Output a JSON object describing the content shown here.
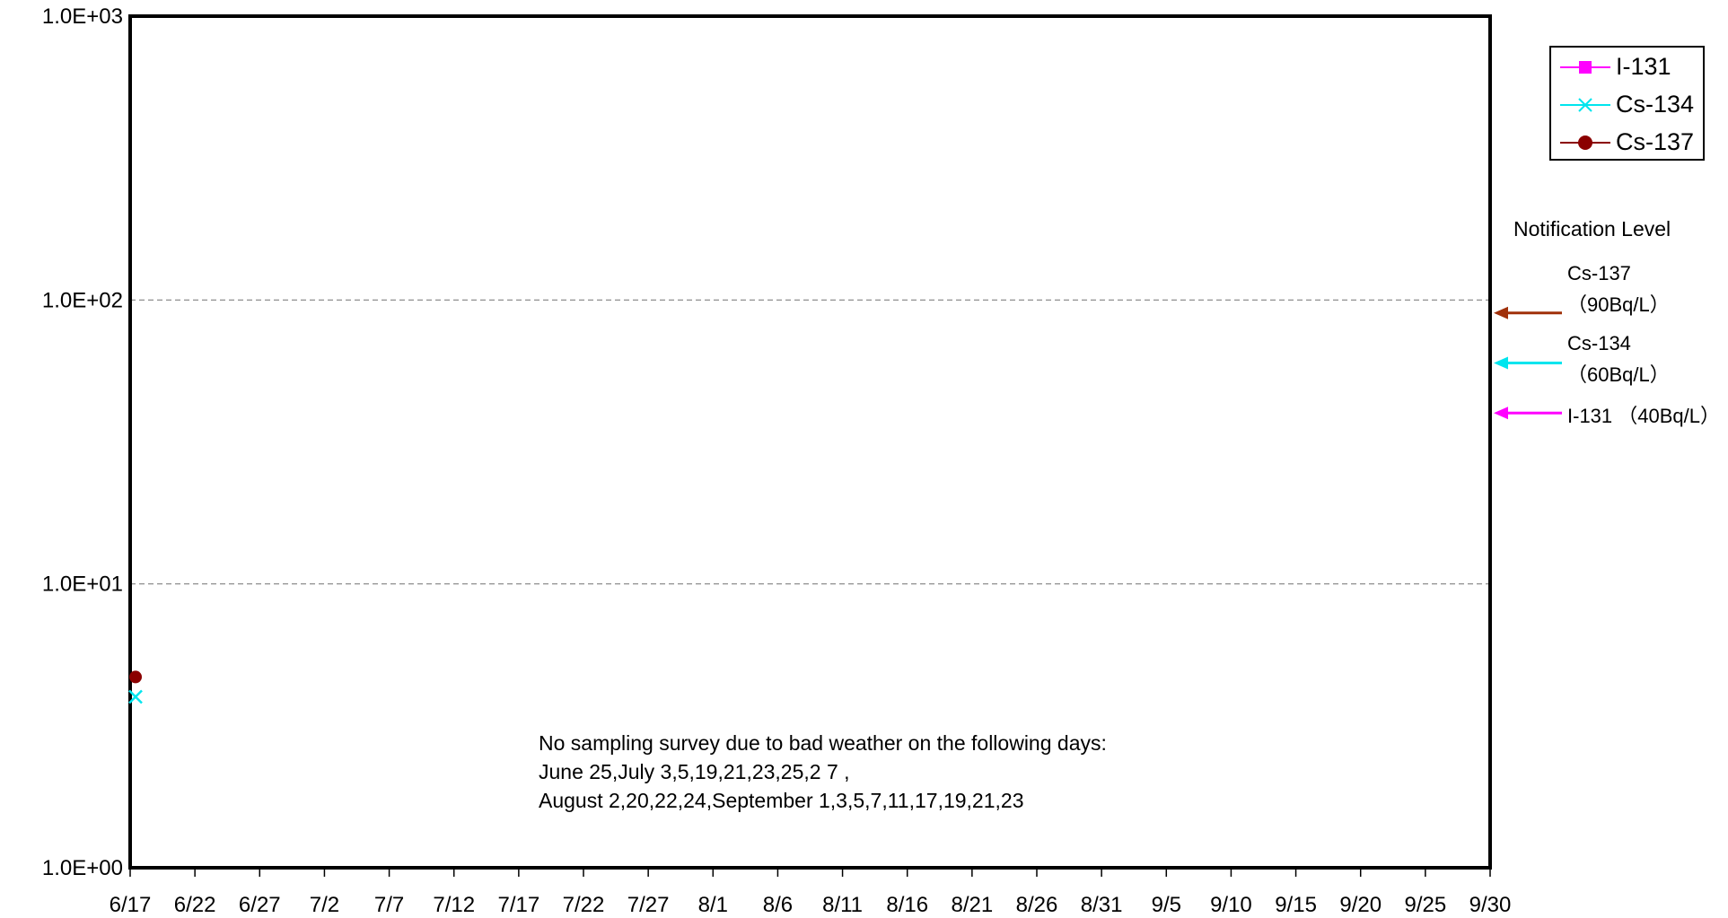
{
  "chart_data": {
    "type": "scatter",
    "y_scale": "log",
    "ylim": [
      1,
      1000
    ],
    "yticks": [
      1,
      10,
      100,
      1000
    ],
    "ytick_labels": [
      "1.0E+00",
      "1.0E+01",
      "1.0E+02",
      "1.0E+03"
    ],
    "xlim": [
      "6/17",
      "9/30"
    ],
    "xtick_labels": [
      "6/17",
      "6/22",
      "6/27",
      "7/2",
      "7/7",
      "7/12",
      "7/17",
      "7/22",
      "7/27",
      "8/1",
      "8/6",
      "8/11",
      "8/16",
      "8/21",
      "8/26",
      "8/31",
      "9/5",
      "9/10",
      "9/15",
      "9/20",
      "9/25",
      "9/30"
    ],
    "grid": "horizontal dashed at 1.0E+01 and 1.0E+02",
    "legend_position": "top-right, outside plot",
    "series": [
      {
        "name": "I-131",
        "color": "#ff00ff",
        "marker": "square",
        "points": []
      },
      {
        "name": "Cs-134",
        "color": "#00e5ee",
        "marker": "x",
        "points": [
          {
            "x": "6/17",
            "y": 4.0
          }
        ]
      },
      {
        "name": "Cs-137",
        "color": "#8b0000",
        "marker": "circle",
        "points": [
          {
            "x": "6/17",
            "y": 4.7
          }
        ]
      }
    ],
    "notification_levels": {
      "title": "Notification Level",
      "levels": [
        {
          "label_line1": "Cs-137",
          "label_line2": "（90Bq/L）",
          "value": 90,
          "color": "#a0300a"
        },
        {
          "label_line1": "Cs-134",
          "label_line2": "（60Bq/L）",
          "value": 60,
          "color": "#00e5ee"
        },
        {
          "label_line1": "I-131 （40Bq/L）",
          "label_line2": "",
          "value": 40,
          "color": "#ff00ff"
        }
      ]
    },
    "annotation": [
      "No sampling survey due to bad weather on the following days:",
      "June 25,July 3,5,19,21,23,25,2 7 ,",
      "August 2,20,22,24,September 1,3,5,7,11,17,19,21,23"
    ]
  }
}
